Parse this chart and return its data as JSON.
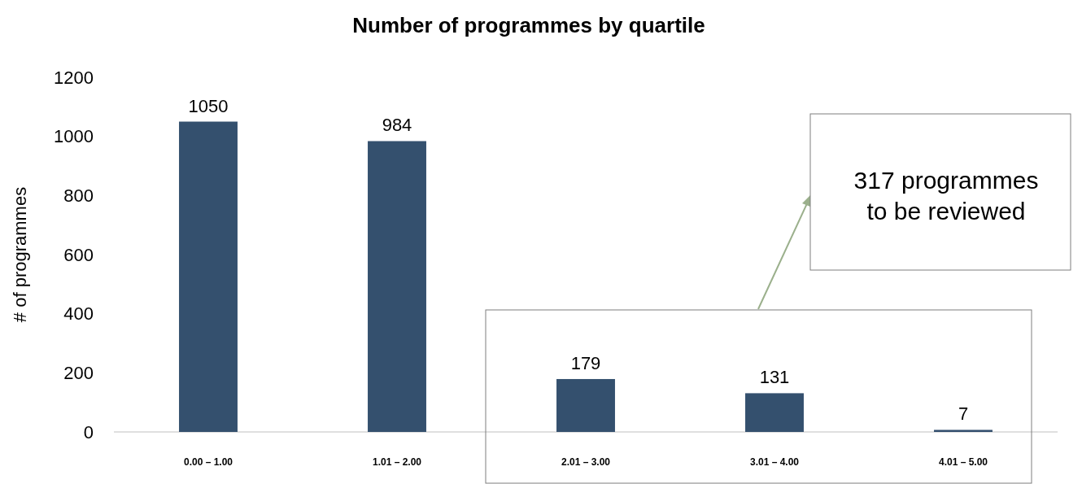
{
  "chart_data": {
    "type": "bar",
    "title": "Number of programmes by quartile",
    "ylabel": "# of programmes",
    "categories": [
      "0.00 – 1.00",
      "1.01 – 2.00",
      "2.01 – 3.00",
      "3.01 – 4.00",
      "4.01 – 5.00"
    ],
    "values": [
      1050,
      984,
      179,
      131,
      7
    ],
    "color": "#34506e",
    "ylim": [
      0,
      1200
    ],
    "yticks": [
      0,
      200,
      400,
      600,
      800,
      1000,
      1200
    ],
    "grid": false,
    "data_labels": true,
    "annotations": [
      "317 programmes\nto be reviewed"
    ]
  }
}
